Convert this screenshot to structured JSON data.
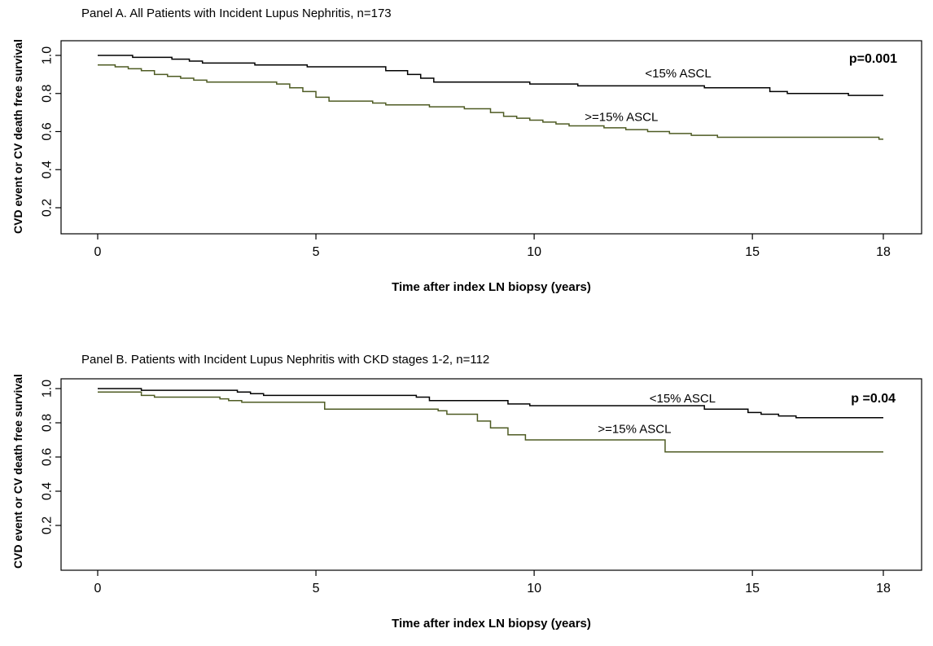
{
  "figure": {
    "background": "#ffffff",
    "curve_black": "#000000",
    "curve_green": "#4e5b23"
  },
  "chart_data": [
    {
      "type": "line",
      "subtype": "kaplan-meier-step",
      "title": "Panel A. All Patients with Incident Lupus Nephritis, n=173",
      "xlabel": "Time after index LN biopsy (years)",
      "ylabel": "CVD event or CV death free survival",
      "p_value_label": "p=0.001",
      "xlim": [
        0,
        18
      ],
      "ylim": [
        0.1,
        1.05
      ],
      "xticks": [
        0,
        5,
        10,
        15,
        18
      ],
      "yticks": [
        0.2,
        0.4,
        0.6,
        0.8,
        1.0
      ],
      "grid": false,
      "legend_position": "inline-labels",
      "series": [
        {
          "name": "<15% ASCL",
          "color": "#000000",
          "end_time": 18,
          "label_anchor": {
            "t": 13.3,
            "v": 0.885
          },
          "steps": [
            [
              0,
              1.0
            ],
            [
              0.8,
              0.99
            ],
            [
              1.7,
              0.98
            ],
            [
              2.1,
              0.97
            ],
            [
              2.4,
              0.96
            ],
            [
              3.6,
              0.95
            ],
            [
              4.8,
              0.94
            ],
            [
              6.6,
              0.92
            ],
            [
              7.1,
              0.9
            ],
            [
              7.4,
              0.88
            ],
            [
              7.7,
              0.86
            ],
            [
              9.9,
              0.85
            ],
            [
              11.0,
              0.84
            ],
            [
              13.9,
              0.83
            ],
            [
              15.4,
              0.81
            ],
            [
              15.8,
              0.8
            ],
            [
              17.2,
              0.79
            ]
          ]
        },
        {
          "name": ">=15% ASCL",
          "color": "#4e5b23",
          "end_time": 18,
          "label_anchor": {
            "t": 12.0,
            "v": 0.655
          },
          "steps": [
            [
              0,
              0.95
            ],
            [
              0.4,
              0.94
            ],
            [
              0.7,
              0.93
            ],
            [
              1.0,
              0.92
            ],
            [
              1.3,
              0.9
            ],
            [
              1.6,
              0.89
            ],
            [
              1.9,
              0.88
            ],
            [
              2.2,
              0.87
            ],
            [
              2.5,
              0.86
            ],
            [
              4.1,
              0.85
            ],
            [
              4.4,
              0.83
            ],
            [
              4.7,
              0.81
            ],
            [
              5.0,
              0.78
            ],
            [
              5.3,
              0.76
            ],
            [
              6.3,
              0.75
            ],
            [
              6.6,
              0.74
            ],
            [
              7.6,
              0.73
            ],
            [
              8.4,
              0.72
            ],
            [
              9.0,
              0.7
            ],
            [
              9.3,
              0.68
            ],
            [
              9.6,
              0.67
            ],
            [
              9.9,
              0.66
            ],
            [
              10.2,
              0.65
            ],
            [
              10.5,
              0.64
            ],
            [
              10.8,
              0.63
            ],
            [
              11.6,
              0.62
            ],
            [
              12.1,
              0.61
            ],
            [
              12.6,
              0.6
            ],
            [
              13.1,
              0.59
            ],
            [
              13.6,
              0.58
            ],
            [
              14.2,
              0.57
            ],
            [
              17.9,
              0.56
            ]
          ]
        }
      ]
    },
    {
      "type": "line",
      "subtype": "kaplan-meier-step",
      "title": "Panel B. Patients with Incident Lupus Nephritis with CKD stages 1-2, n=112",
      "xlabel": "Time after index LN biopsy (years)",
      "ylabel": "CVD event or CV death free survival",
      "p_value_label": "p =0.04",
      "xlim": [
        0,
        18
      ],
      "ylim": [
        0.1,
        1.05
      ],
      "xticks": [
        0,
        5,
        10,
        15,
        18
      ],
      "yticks": [
        0.2,
        0.4,
        0.6,
        0.8,
        1.0
      ],
      "grid": false,
      "legend_position": "inline-labels",
      "series": [
        {
          "name": "<15% ASCL",
          "color": "#000000",
          "end_time": 18,
          "label_anchor": {
            "t": 13.4,
            "v": 0.92
          },
          "steps": [
            [
              0,
              1.0
            ],
            [
              1.0,
              0.99
            ],
            [
              3.2,
              0.98
            ],
            [
              3.5,
              0.97
            ],
            [
              3.8,
              0.96
            ],
            [
              7.3,
              0.95
            ],
            [
              7.6,
              0.93
            ],
            [
              9.4,
              0.91
            ],
            [
              9.9,
              0.9
            ],
            [
              13.9,
              0.88
            ],
            [
              14.9,
              0.86
            ],
            [
              15.2,
              0.85
            ],
            [
              15.6,
              0.84
            ],
            [
              16.0,
              0.83
            ]
          ]
        },
        {
          "name": ">=15% ASCL",
          "color": "#4e5b23",
          "end_time": 18,
          "label_anchor": {
            "t": 12.3,
            "v": 0.74
          },
          "steps": [
            [
              0,
              0.98
            ],
            [
              1.0,
              0.96
            ],
            [
              1.3,
              0.95
            ],
            [
              2.8,
              0.94
            ],
            [
              3.0,
              0.93
            ],
            [
              3.3,
              0.92
            ],
            [
              5.2,
              0.88
            ],
            [
              7.8,
              0.87
            ],
            [
              8.0,
              0.85
            ],
            [
              8.7,
              0.81
            ],
            [
              9.0,
              0.77
            ],
            [
              9.4,
              0.73
            ],
            [
              9.8,
              0.7
            ],
            [
              13.0,
              0.63
            ]
          ]
        }
      ]
    }
  ]
}
